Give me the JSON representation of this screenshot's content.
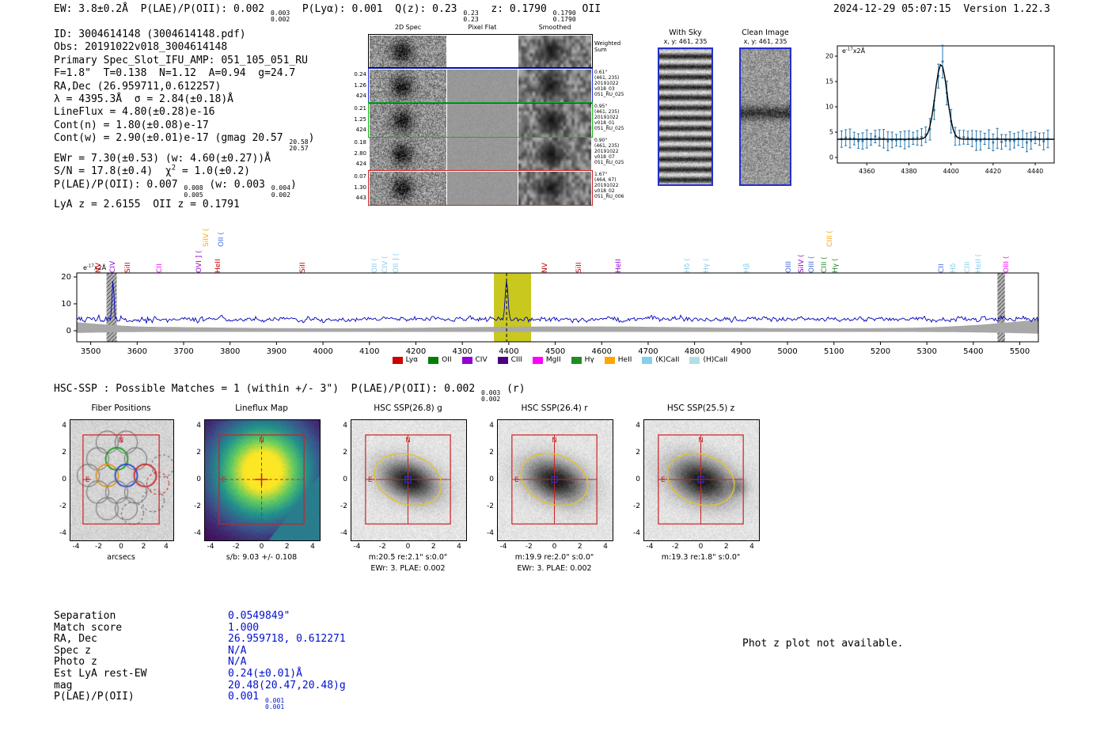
{
  "header": {
    "summary": "EW: 3.8±0.2Å  P(LAE)/P(OII): 0.002 {0.003|0.002}  P(Lyα): 0.001  Q(z): 0.23 {0.23|0.23}  z: 0.1790 {0.1790|0.1790} OII",
    "timestamp": "2024-12-29 05:07:15  Version 1.22.3"
  },
  "info": {
    "lines": [
      "ID: 3004614148 (3004614148.pdf)",
      "Obs: 20191022v018_3004614148",
      "Primary Spec_Slot_IFU_AMP: 051_105_051_RU",
      "F=1.8\"  T=0.138  N=1.12  A=0.94  g=24.7",
      "RA,Dec (26.959711,0.612257)",
      "λ = 4395.3Å  σ = 2.84(±0.18)Å",
      "LineFlux = 4.80(±0.28)e-16",
      "Cont(n) = 1.80(±0.08)e-17",
      "Cont(w) = 2.90(±0.01)e-17 (gmag 20.57 {20.58|20.57})",
      "EWr = 7.30(±0.53) (w: 4.60(±0.27))Å",
      "S/N = 17.8(±0.4)  χ^{2} = 1.0(±0.2)",
      "P(LAE)/P(OII): 0.007 {0.008|0.005} (w: 0.003 {0.004|0.002})",
      "LyA z = 2.6155  OII z = 0.1791"
    ]
  },
  "cutouts": {
    "columns": [
      "2D Spec",
      "Pixel Flat",
      "Smoothed"
    ],
    "rows": [
      {
        "border": "black",
        "left": [],
        "right": [
          "Weighted",
          "Sum"
        ]
      },
      {
        "border": "blue",
        "left": [
          "0.24",
          "1.26",
          "424"
        ],
        "right": [
          "0.61\"",
          "(461, 235)",
          "20191022",
          "v018_03",
          "051_RU_025"
        ]
      },
      {
        "border": "green",
        "left": [
          "0.21",
          "1.25",
          "424"
        ],
        "right": [
          "0.95\"",
          "(461, 235)",
          "20191022",
          "v018_01",
          "051_RU_025"
        ]
      },
      {
        "border": "none",
        "left": [
          "0.18",
          "2.80",
          "424"
        ],
        "right": [
          "0.90\"",
          "(461, 235)",
          "20191022",
          "v018_07",
          "051_RU_025"
        ]
      },
      {
        "border": "red",
        "left": [
          "0.07",
          "1.30",
          "443"
        ],
        "right": [
          "1.67\"",
          "(464, 67)",
          "20191022",
          "v018_02",
          "051_RU_006"
        ]
      }
    ]
  },
  "with_sky": {
    "title": "With Sky",
    "xy": "x, y: 461, 235"
  },
  "clean_image": {
    "title": "Clean Image",
    "xy": "x, y: 461, 235"
  },
  "chart_data": [
    {
      "id": "emission_line_fit",
      "type": "scatter",
      "ylabel_annotation": "e^{-17}x2Å",
      "x_range": [
        4346,
        4449
      ],
      "y_range": [
        -1.5,
        22.5
      ],
      "x_ticks": [
        4360,
        4380,
        4400,
        4420,
        4440
      ],
      "y_ticks": [
        0,
        5,
        10,
        15,
        20
      ],
      "series": [
        {
          "name": "observed_flux",
          "style": "errorbar_points",
          "color": "#2878b0"
        },
        {
          "name": "gaussian_fit",
          "style": "line",
          "color": "#000000"
        }
      ],
      "model": {
        "continuum": 3.6,
        "peak_center": 4395.3,
        "peak_sigma": 2.84,
        "peak_amplitude": 14.8,
        "noise_amp": 1.25,
        "seed": 11
      }
    },
    {
      "id": "full_spectrum",
      "type": "line",
      "ylabel_annotation": "e^{-17}x2Å",
      "x_range": [
        3470,
        5540
      ],
      "y_range": [
        -4.1,
        21.5
      ],
      "x_ticks": [
        3500,
        3600,
        3700,
        3800,
        3900,
        4000,
        4100,
        4200,
        4300,
        4400,
        4500,
        4600,
        4700,
        4800,
        4900,
        5000,
        5100,
        5200,
        5300,
        5400,
        5500
      ],
      "y_ticks": [
        0,
        10,
        20
      ],
      "line_color": "#0000bb",
      "model": {
        "continuum": 4.3,
        "peak_center": 4395.3,
        "peak_sigma": 2.84,
        "peak_amplitude": 15.3,
        "noise_amp": 1.5,
        "seed": 5
      },
      "highlight_band": {
        "x0": 4368,
        "x1": 4448,
        "color": "#c8c81e"
      },
      "masked_bands": [
        {
          "x0": 3534,
          "x1": 3556
        },
        {
          "x0": 5452,
          "x1": 5468
        }
      ],
      "error_region_color": "#a8a8a8",
      "line_labels": [
        {
          "text": "NV",
          "wl": 3538,
          "color": "#cc0000",
          "tier": 0
        },
        {
          "text": "CIV",
          "wl": 3568,
          "color": "#9400d3",
          "tier": 0
        },
        {
          "text": "SiII",
          "wl": 3602,
          "color": "#cc0000",
          "tier": 0
        },
        {
          "text": "CII",
          "wl": 3669,
          "color": "#ff00ff",
          "tier": 0
        },
        {
          "text": "OVI ] (",
          "wl": 3754,
          "color": "#9400d3",
          "tier": 0
        },
        {
          "text": "SiIV (",
          "wl": 3770,
          "color": "#ffa500",
          "tier": 1
        },
        {
          "text": "HeII",
          "wl": 3796,
          "color": "#cc0000",
          "tier": 0
        },
        {
          "text": "OII (",
          "wl": 3802,
          "color": "#4169e1",
          "tier": 1
        },
        {
          "text": "SiII",
          "wl": 3977,
          "color": "#cc0000",
          "tier": 0
        },
        {
          "text": "OII (",
          "wl": 4132,
          "color": "#87ceeb",
          "tier": 0
        },
        {
          "text": "CIV (",
          "wl": 4155,
          "color": "#87ceeb",
          "tier": 0
        },
        {
          "text": "OII ] (",
          "wl": 4178,
          "color": "#87ceeb",
          "tier": 0
        },
        {
          "text": "NV",
          "wl": 4499,
          "color": "#cc0000",
          "tier": 0
        },
        {
          "text": "SiII",
          "wl": 4573,
          "color": "#cc0000",
          "tier": 0
        },
        {
          "text": "HeII",
          "wl": 4657,
          "color": "#9400d3",
          "tier": 0
        },
        {
          "text": "Hδ (",
          "wl": 4805,
          "color": "#87ceeb",
          "tier": 0
        },
        {
          "text": "Hγ (",
          "wl": 4847,
          "color": "#87ceeb",
          "tier": 0
        },
        {
          "text": "Hβ",
          "wl": 4934,
          "color": "#87ceeb",
          "tier": 0
        },
        {
          "text": "OIII",
          "wl": 5023,
          "color": "#4169e1",
          "tier": 0
        },
        {
          "text": "SiIV (",
          "wl": 5051,
          "color": "#9400d3",
          "tier": 0
        },
        {
          "text": "OIII (",
          "wl": 5073,
          "color": "#4169e1",
          "tier": 0
        },
        {
          "text": "CIII (",
          "wl": 5101,
          "color": "#228b22",
          "tier": 0
        },
        {
          "text": "CIII (",
          "wl": 5113,
          "color": "#ffa500",
          "tier": 1
        },
        {
          "text": "Hγ (",
          "wl": 5125,
          "color": "#228b22",
          "tier": 0
        },
        {
          "text": "CII",
          "wl": 5353,
          "color": "#4169e1",
          "tier": 0
        },
        {
          "text": "Hδ",
          "wl": 5378,
          "color": "#87ceeb",
          "tier": 0
        },
        {
          "text": "CIII",
          "wl": 5408,
          "color": "#87ceeb",
          "tier": 0
        },
        {
          "text": "HeII (",
          "wl": 5432,
          "color": "#87ceeb",
          "tier": 0
        },
        {
          "text": "OIII (",
          "wl": 5492,
          "color": "#ff00ff",
          "tier": 0
        }
      ],
      "legend": [
        {
          "label": "Lyα",
          "color": "#cc0000"
        },
        {
          "label": "OII",
          "color": "#008000"
        },
        {
          "label": "CIV",
          "color": "#9400d3"
        },
        {
          "label": "CIII",
          "color": "#4b0082"
        },
        {
          "label": "MgII",
          "color": "#ff00ff"
        },
        {
          "label": "Hγ",
          "color": "#228b22"
        },
        {
          "label": "HeII",
          "color": "#ffa500"
        },
        {
          "label": "(K)CaII",
          "color": "#87ceeb"
        },
        {
          "label": "(H)CaII",
          "color": "#b0e0e6"
        }
      ]
    }
  ],
  "matches_section": {
    "header": "HSC-SSP : Possible Matches = 1 (within +/- 3\")  P(LAE)/P(OII): 0.002 {0.003|0.002} (r)",
    "axis_ticks": [
      "-4",
      "-2",
      "0",
      "2",
      "4"
    ],
    "compass": {
      "n": "N",
      "e": "E"
    },
    "panels": [
      {
        "title": "Fiber Positions",
        "xlabel": "arcsecs",
        "captions": []
      },
      {
        "title": "Lineflux Map",
        "xlabel": "",
        "captions": [
          "s/b: 9.03 +/- 0.108"
        ]
      },
      {
        "title": "HSC SSP(26.8) g",
        "xlabel": "",
        "captions": [
          "m:20.5 re:2.1\" s:0.0\"",
          "EWr: 3. PLAE: 0.002"
        ]
      },
      {
        "title": "HSC SSP(26.4) r",
        "xlabel": "",
        "captions": [
          "m:19.9 re:2.0\" s:0.0\"",
          "EWr: 3. PLAE: 0.002"
        ]
      },
      {
        "title": "HSC SSP(25.5) z",
        "xlabel": "",
        "captions": [
          "m:19.3 re:1.8\" s:0.0\""
        ]
      }
    ],
    "match_table": [
      {
        "label": "Separation",
        "value": "0.0549849\""
      },
      {
        "label": "Match score",
        "value": "1.000"
      },
      {
        "label": "RA, Dec",
        "value": "26.959718, 0.612271"
      },
      {
        "label": "Spec z",
        "value": "N/A"
      },
      {
        "label": "Photo z",
        "value": "N/A"
      },
      {
        "label": "Est LyA rest-EW",
        "value": "0.24(±0.01)Å"
      },
      {
        "label": "mag",
        "value": "20.48(20.47,20.48)g"
      },
      {
        "label": "P(LAE)/P(OII)",
        "value": "0.001 {0.001|0.001}"
      }
    ],
    "photz_note": "Phot z plot not available.",
    "value_color": "#0011cc"
  }
}
